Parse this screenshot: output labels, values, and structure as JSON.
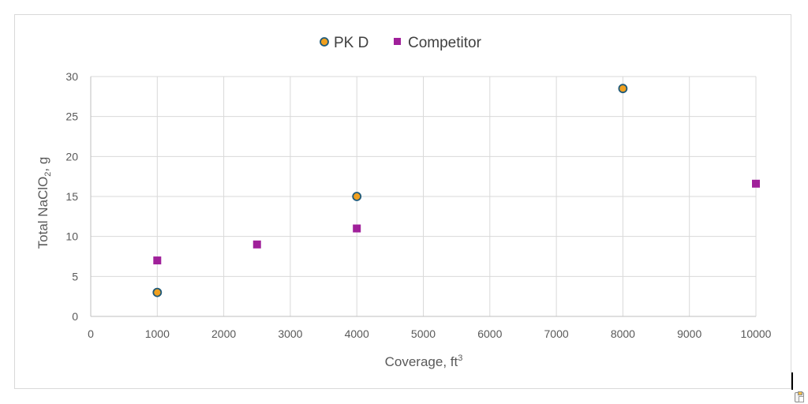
{
  "chart_data": {
    "type": "scatter",
    "xlabel": "Coverage, ft",
    "xlabel_sup": "3",
    "ylabel_pre": "Total NaClO",
    "ylabel_sub": "2",
    "ylabel_post": ", g",
    "xlim": [
      0,
      10000
    ],
    "ylim": [
      0,
      30
    ],
    "x_ticks": [
      0,
      1000,
      2000,
      3000,
      4000,
      5000,
      6000,
      7000,
      8000,
      9000,
      10000
    ],
    "y_ticks": [
      0,
      5,
      10,
      15,
      20,
      25,
      30
    ],
    "grid": true,
    "legend_position": "top",
    "series": [
      {
        "name": "PK D",
        "marker": "circle",
        "color": "#f0a020",
        "edge_color": "#1f5a7a",
        "points": [
          [
            1000,
            3
          ],
          [
            4000,
            15
          ],
          [
            8000,
            28.5
          ]
        ]
      },
      {
        "name": "Competitor",
        "marker": "square",
        "color": "#a0209a",
        "points": [
          [
            1000,
            7
          ],
          [
            2500,
            9
          ],
          [
            4000,
            11
          ],
          [
            10000,
            16.6
          ]
        ]
      }
    ]
  }
}
